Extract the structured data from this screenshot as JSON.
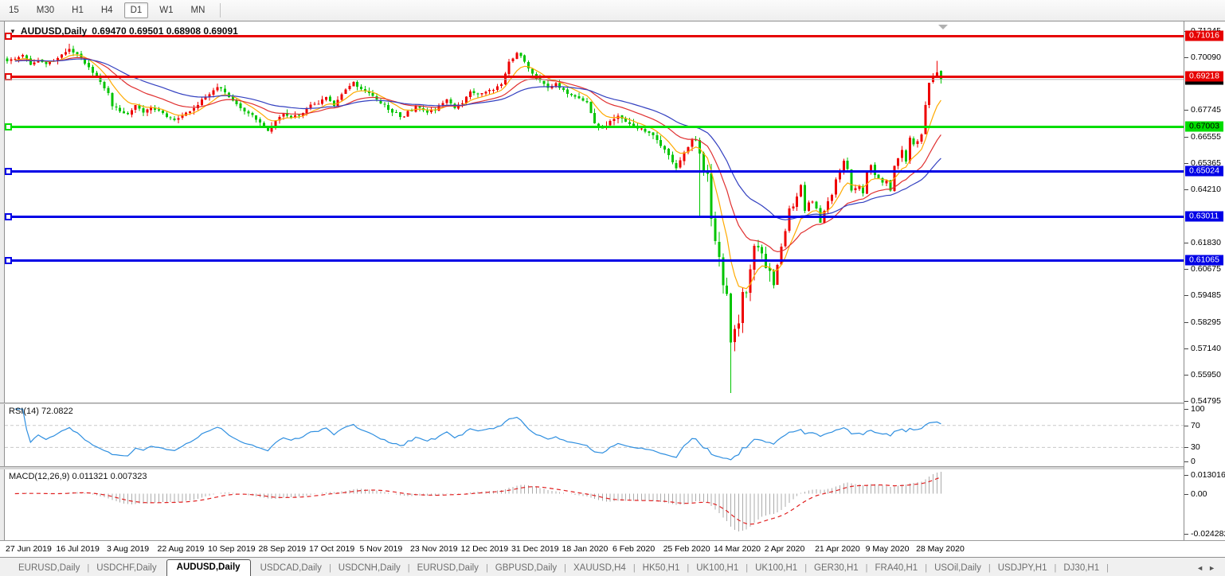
{
  "toolbar": {
    "timeframes": [
      "15",
      "M30",
      "H1",
      "H4",
      "D1",
      "W1",
      "MN"
    ],
    "active": "D1"
  },
  "chart": {
    "symbol_timeframe": "AUDUSD,Daily",
    "ohlc_text": "0.69470 0.69501 0.68908 0.69091",
    "current_bar": {
      "open": 0.6947,
      "high": 0.69501,
      "low": 0.68908,
      "close": 0.69091
    }
  },
  "price_axis": {
    "top_value": 0.71245,
    "bottom_value": 0.54795,
    "ticks": [
      "0.71245",
      "0.70090",
      "0.67745",
      "0.66555",
      "0.65365",
      "0.64210",
      "0.61830",
      "0.60675",
      "0.59485",
      "0.58295",
      "0.57140",
      "0.55950",
      "0.54795"
    ]
  },
  "levels": [
    {
      "price": 0.71016,
      "label": "0.71016",
      "color": "#e60000",
      "text_color": "#ffffff"
    },
    {
      "price": 0.69218,
      "label": "0.69218",
      "color": "#e60000",
      "text_color": "#ffffff"
    },
    {
      "price": 0.67003,
      "label": "0.67003",
      "color": "#00dd00",
      "text_color": "#000000"
    },
    {
      "price": 0.65024,
      "label": "0.65024",
      "color": "#0000e6",
      "text_color": "#ffffff"
    },
    {
      "price": 0.63011,
      "label": "0.63011",
      "color": "#0000e6",
      "text_color": "#ffffff"
    },
    {
      "price": 0.61065,
      "label": "0.61065",
      "color": "#0000e6",
      "text_color": "#ffffff"
    }
  ],
  "bid": {
    "price": 0.69091,
    "label": "0.69091",
    "line_color": "#b4b4b4",
    "box_color": "#000000"
  },
  "indicators": {
    "rsi": {
      "label": "RSI(14) 72.0822",
      "period": 14,
      "value": 72.0822,
      "scale_labels": [
        "100",
        "70",
        "30",
        "0"
      ],
      "line_color": "#2f8fe0"
    },
    "macd": {
      "label": "MACD(12,26,9) 0.011321 0.007323",
      "fast": 12,
      "slow": 26,
      "signal": 9,
      "value": 0.011321,
      "signal_value": 0.007323,
      "scale_max": 0.013016,
      "scale_min": -0.024282,
      "scale_labels": [
        "0.013016",
        "0.00",
        "-0.024282"
      ],
      "hist_color": "#ababab",
      "signal_color": "#e02020"
    }
  },
  "time_axis": {
    "bars_per_label": 13,
    "labels": [
      "27 Jun 2019",
      "16 Jul 2019",
      "3 Aug 2019",
      "22 Aug 2019",
      "10 Sep 2019",
      "28 Sep 2019",
      "17 Oct 2019",
      "5 Nov 2019",
      "23 Nov 2019",
      "12 Dec 2019",
      "31 Dec 2019",
      "18 Jan 2020",
      "6 Feb 2020",
      "25 Feb 2020",
      "14 Mar 2020",
      "2 Apr 2020",
      "21 Apr 2020",
      "9 May 2020",
      "28 May 2020"
    ]
  },
  "tabs": {
    "items": [
      "EURUSD,Daily",
      "USDCHF,Daily",
      "AUDUSD,Daily",
      "USDCAD,Daily",
      "USDCNH,Daily",
      "EURUSD,Daily",
      "GBPUSD,Daily",
      "XAUUSD,H4",
      "HK50,H1",
      "UK100,H1",
      "UK100,H1",
      "GER30,H1",
      "FRA40,H1",
      "USOil,Daily",
      "USDJPY,H1",
      "DJ30,H1"
    ],
    "active_index": 2
  },
  "chart_data": {
    "type": "candlestick",
    "symbol": "AUDUSD",
    "timeframe": "Daily",
    "candle_count": 241,
    "up_color": "#ee0000",
    "down_color": "#00c400",
    "note": "red = bullish, green = bearish (CN color convention)",
    "close_anchors": [
      [
        0,
        0.699
      ],
      [
        2,
        0.7
      ],
      [
        4,
        0.7018
      ],
      [
        6,
        0.6975
      ],
      [
        8,
        0.6995
      ],
      [
        10,
        0.6978
      ],
      [
        12,
        0.6992
      ],
      [
        14,
        0.702
      ],
      [
        16,
        0.7045
      ],
      [
        18,
        0.7022
      ],
      [
        20,
        0.698
      ],
      [
        22,
        0.6938
      ],
      [
        24,
        0.6898
      ],
      [
        26,
        0.6848
      ],
      [
        27,
        0.679
      ],
      [
        29,
        0.6768
      ],
      [
        31,
        0.6755
      ],
      [
        33,
        0.6795
      ],
      [
        35,
        0.6762
      ],
      [
        37,
        0.6785
      ],
      [
        39,
        0.677
      ],
      [
        41,
        0.6742
      ],
      [
        43,
        0.6728
      ],
      [
        45,
        0.6748
      ],
      [
        47,
        0.6768
      ],
      [
        49,
        0.6795
      ],
      [
        51,
        0.6832
      ],
      [
        54,
        0.6875
      ],
      [
        56,
        0.6852
      ],
      [
        58,
        0.6815
      ],
      [
        60,
        0.6782
      ],
      [
        62,
        0.6758
      ],
      [
        64,
        0.673
      ],
      [
        66,
        0.67
      ],
      [
        67,
        0.668
      ],
      [
        69,
        0.6725
      ],
      [
        71,
        0.6758
      ],
      [
        73,
        0.6738
      ],
      [
        76,
        0.676
      ],
      [
        79,
        0.68
      ],
      [
        82,
        0.683
      ],
      [
        84,
        0.6792
      ],
      [
        87,
        0.6865
      ],
      [
        89,
        0.6898
      ],
      [
        92,
        0.6858
      ],
      [
        95,
        0.682
      ],
      [
        98,
        0.6775
      ],
      [
        102,
        0.6745
      ],
      [
        105,
        0.679
      ],
      [
        107,
        0.6772
      ],
      [
        110,
        0.6772
      ],
      [
        113,
        0.682
      ],
      [
        115,
        0.6782
      ],
      [
        117,
        0.6802
      ],
      [
        119,
        0.6855
      ],
      [
        122,
        0.6848
      ],
      [
        125,
        0.6862
      ],
      [
        127,
        0.6888
      ],
      [
        129,
        0.6988
      ],
      [
        131,
        0.7028
      ],
      [
        133,
        0.6988
      ],
      [
        135,
        0.6935
      ],
      [
        137,
        0.6905
      ],
      [
        139,
        0.6872
      ],
      [
        141,
        0.6892
      ],
      [
        143,
        0.6862
      ],
      [
        145,
        0.684
      ],
      [
        147,
        0.6825
      ],
      [
        149,
        0.6808
      ],
      [
        151,
        0.6715
      ],
      [
        153,
        0.6692
      ],
      [
        155,
        0.6725
      ],
      [
        157,
        0.6748
      ],
      [
        159,
        0.6722
      ],
      [
        161,
        0.67
      ],
      [
        163,
        0.6692
      ],
      [
        165,
        0.6672
      ],
      [
        167,
        0.664
      ],
      [
        169,
        0.6598
      ],
      [
        171,
        0.654
      ],
      [
        172,
        0.6515
      ],
      [
        174,
        0.6585
      ],
      [
        176,
        0.6642
      ],
      [
        177,
        0.664
      ],
      [
        178,
        0.658
      ],
      [
        179,
        0.65
      ],
      [
        180,
        0.649
      ],
      [
        181,
        0.629
      ],
      [
        182,
        0.619
      ],
      [
        183,
        0.612
      ],
      [
        184,
        0.5995
      ],
      [
        185,
        0.5955
      ],
      [
        186,
        0.574
      ],
      [
        187,
        0.58
      ],
      [
        188,
        0.5825
      ],
      [
        189,
        0.5965
      ],
      [
        190,
        0.5962
      ],
      [
        191,
        0.6065
      ],
      [
        192,
        0.617
      ],
      [
        193,
        0.6162
      ],
      [
        194,
        0.6135
      ],
      [
        195,
        0.607
      ],
      [
        196,
        0.6058
      ],
      [
        197,
        0.5995
      ],
      [
        198,
        0.6085
      ],
      [
        199,
        0.6165
      ],
      [
        200,
        0.6235
      ],
      [
        201,
        0.6335
      ],
      [
        202,
        0.6345
      ],
      [
        203,
        0.6388
      ],
      [
        204,
        0.644
      ],
      [
        205,
        0.6325
      ],
      [
        206,
        0.6362
      ],
      [
        207,
        0.6365
      ],
      [
        208,
        0.6335
      ],
      [
        209,
        0.6272
      ],
      [
        210,
        0.6325
      ],
      [
        211,
        0.6368
      ],
      [
        212,
        0.6395
      ],
      [
        213,
        0.6465
      ],
      [
        214,
        0.6495
      ],
      [
        215,
        0.6548
      ],
      [
        216,
        0.651
      ],
      [
        217,
        0.6415
      ],
      [
        218,
        0.6425
      ],
      [
        219,
        0.6435
      ],
      [
        220,
        0.6402
      ],
      [
        221,
        0.6495
      ],
      [
        222,
        0.6528
      ],
      [
        223,
        0.6485
      ],
      [
        224,
        0.647
      ],
      [
        225,
        0.645
      ],
      [
        226,
        0.646
      ],
      [
        227,
        0.6415
      ],
      [
        228,
        0.6525
      ],
      [
        229,
        0.6558
      ],
      [
        230,
        0.6595
      ],
      [
        231,
        0.6545
      ],
      [
        232,
        0.665
      ],
      [
        233,
        0.662
      ],
      [
        234,
        0.6635
      ],
      [
        235,
        0.6665
      ],
      [
        236,
        0.6795
      ],
      [
        237,
        0.6895
      ],
      [
        238,
        0.692
      ],
      [
        239,
        0.694
      ],
      [
        240,
        0.69091
      ]
    ],
    "wick_zones": [
      [
        0,
        149,
        0.0021
      ],
      [
        150,
        179,
        0.0026
      ],
      [
        180,
        196,
        0.0062
      ],
      [
        197,
        240,
        0.0022
      ]
    ],
    "overrides": {
      "16": {
        "high": 0.7068
      },
      "131": {
        "high": 0.7032
      },
      "178": {
        "low": 0.6302
      },
      "186": {
        "low": 0.5515
      },
      "239": {
        "high": 0.6992
      },
      "240": {
        "open": 0.6947,
        "high": 0.69501,
        "low": 0.68908,
        "close": 0.69091
      }
    },
    "moving_averages": [
      {
        "period": 8,
        "type": "ema",
        "color": "#ffaa00"
      },
      {
        "period": 21,
        "type": "ema",
        "color": "#e03030"
      },
      {
        "period": 40,
        "type": "ema",
        "color": "#3340c0"
      }
    ]
  }
}
